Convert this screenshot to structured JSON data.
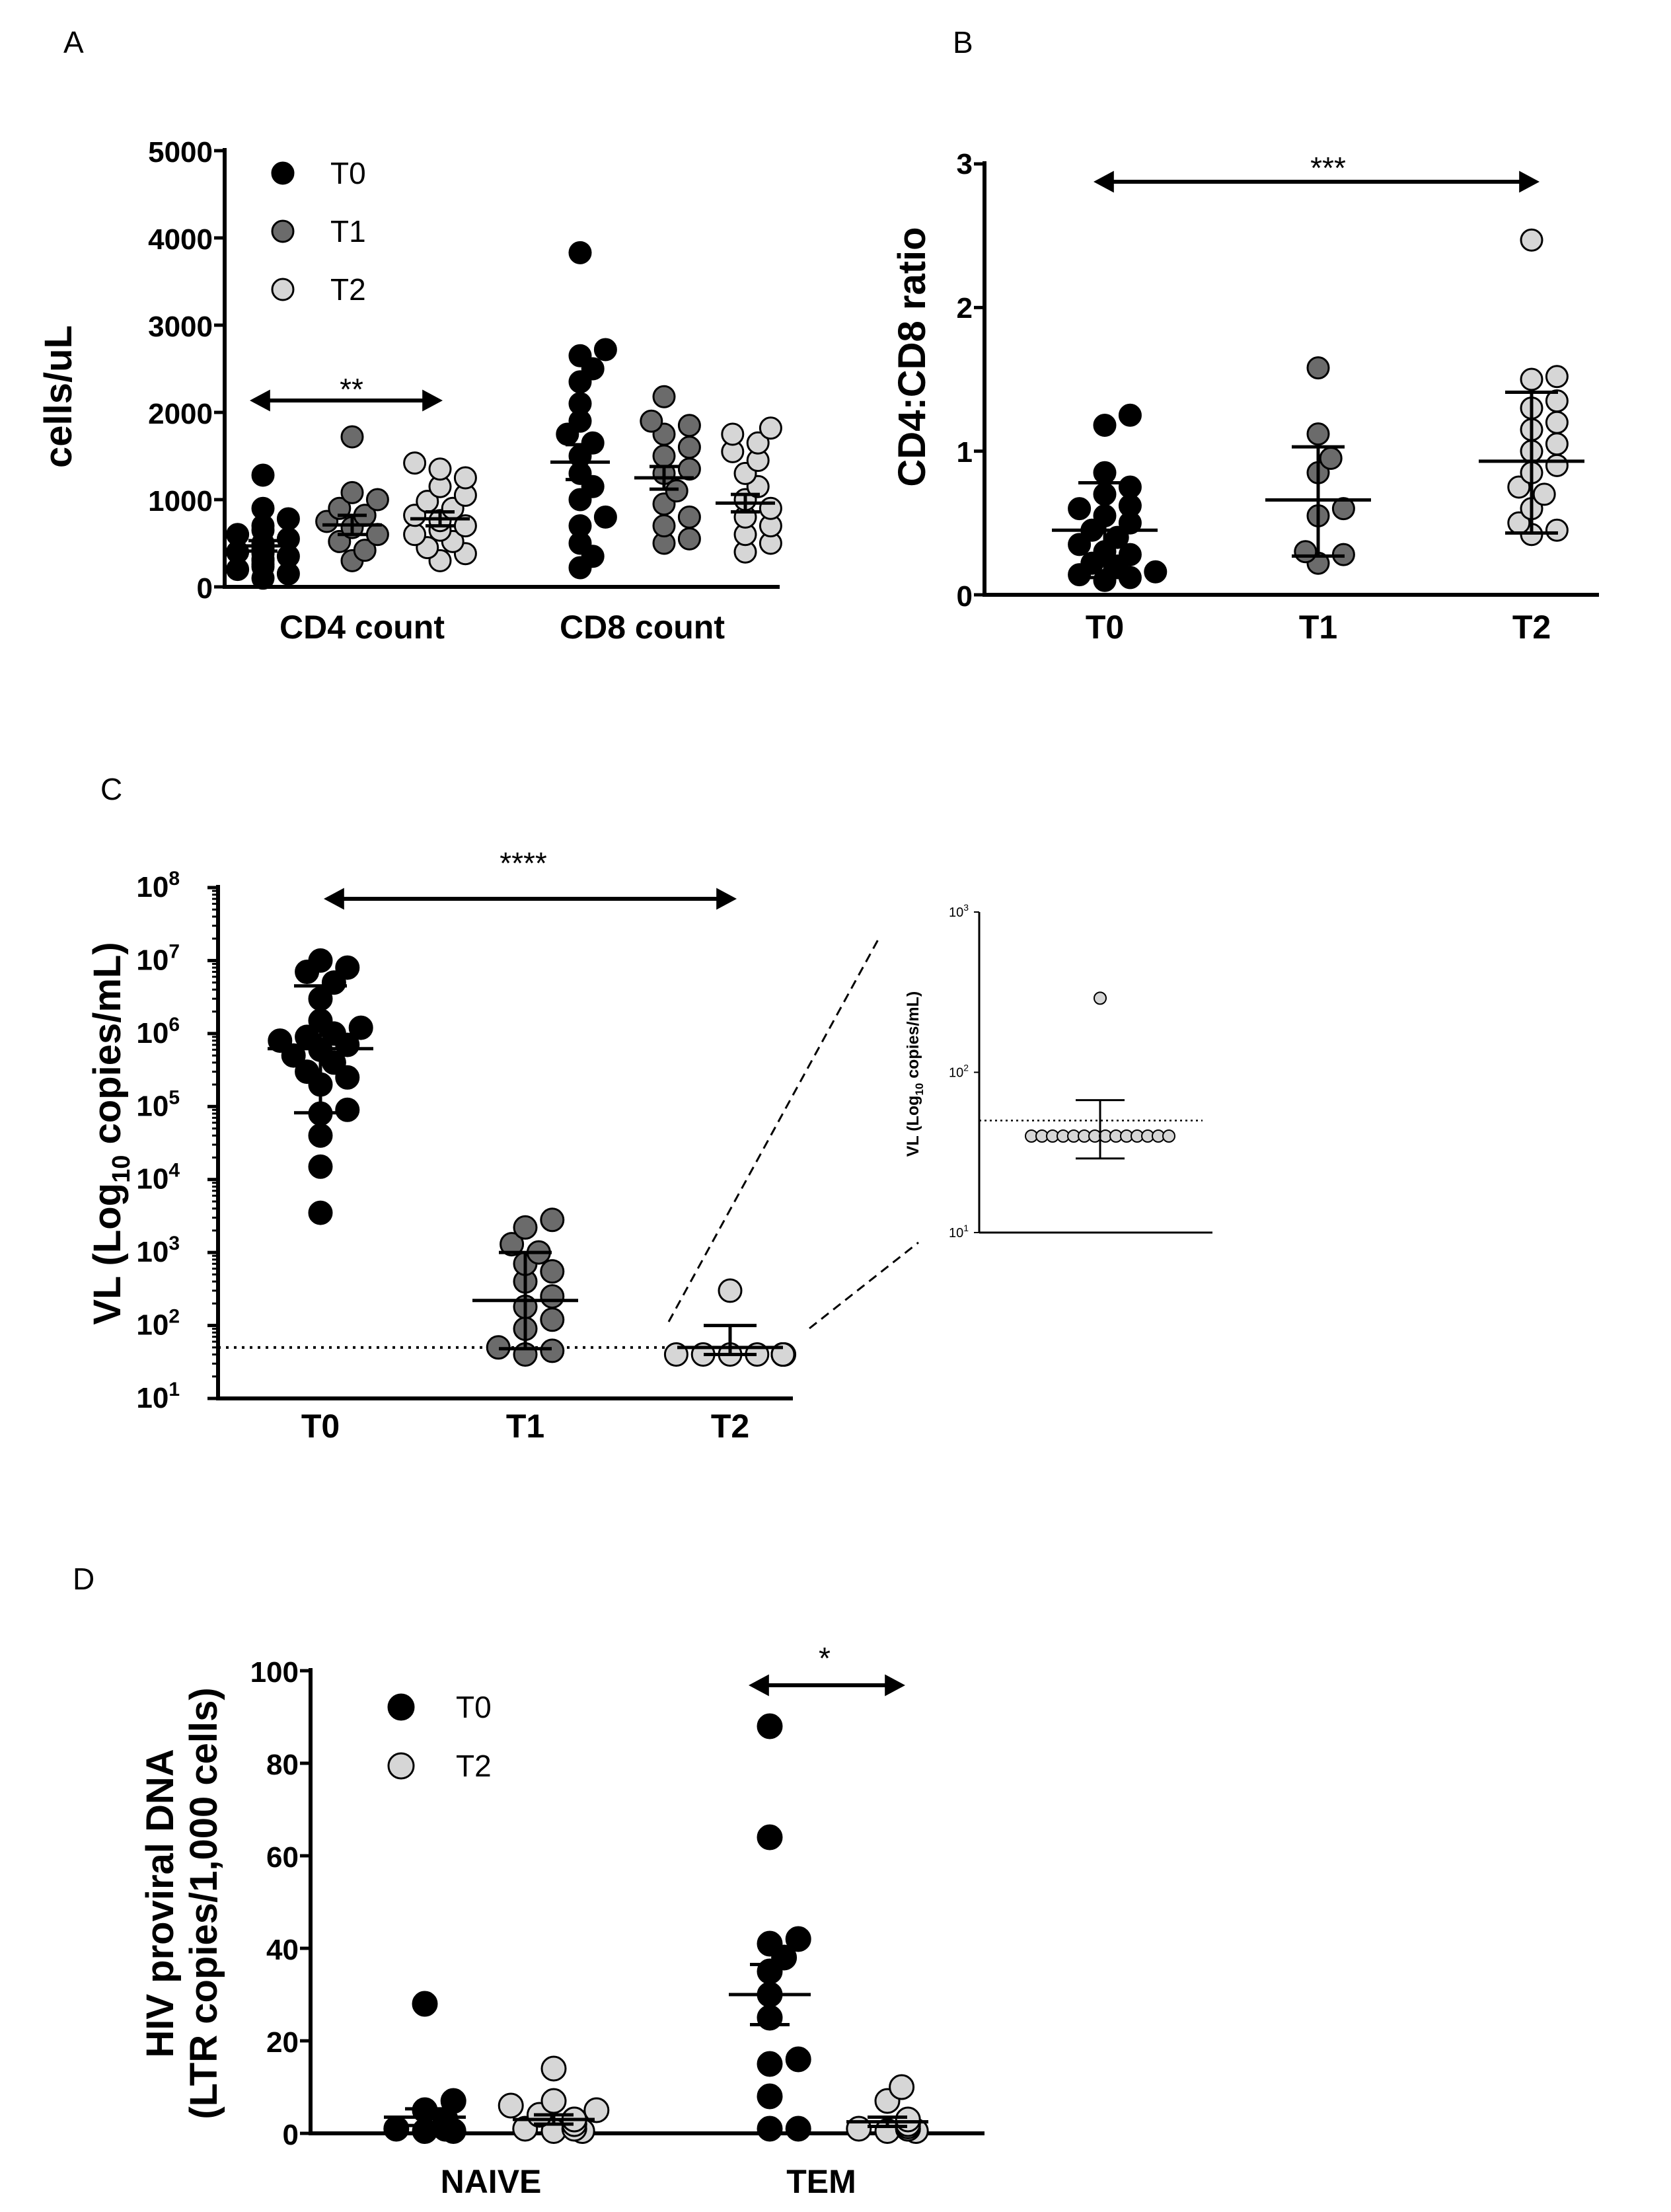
{
  "figure": {
    "panels": [
      "A",
      "B",
      "C",
      "D"
    ]
  },
  "colors": {
    "T0": "#000000",
    "T1": "#6b6b6b",
    "T2": "#d6d6d6",
    "outline": "#000000"
  },
  "chart_data": [
    {
      "id": "A",
      "type": "scatter",
      "panel_label": "A",
      "ylabel": "cells/uL",
      "ylim": [
        0,
        5000
      ],
      "yticks": [
        0,
        1000,
        2000,
        3000,
        4000,
        5000
      ],
      "categories": [
        "CD4 count",
        "CD8 count"
      ],
      "legend": [
        "T0",
        "T1",
        "T2"
      ],
      "legend_position": "top-left",
      "significance": {
        "label": "**",
        "from": "CD4 count T0",
        "to": "CD4 count T2"
      },
      "series": [
        {
          "name": "T0",
          "group": "CD4 count",
          "mean": 470,
          "sem": 60,
          "values": [
            100,
            150,
            200,
            230,
            260,
            300,
            320,
            350,
            380,
            400,
            430,
            460,
            500,
            550,
            600,
            650,
            700,
            780,
            900,
            1280
          ]
        },
        {
          "name": "T1",
          "group": "CD4 count",
          "mean": 710,
          "sem": 110,
          "values": [
            300,
            420,
            520,
            600,
            680,
            750,
            820,
            900,
            1000,
            1080,
            1720
          ]
        },
        {
          "name": "T2",
          "group": "CD4 count",
          "mean": 780,
          "sem": 80,
          "values": [
            300,
            380,
            450,
            520,
            600,
            650,
            700,
            760,
            820,
            900,
            980,
            1050,
            1150,
            1250,
            1350,
            1420
          ]
        },
        {
          "name": "T0",
          "group": "CD8 count",
          "mean": 1430,
          "sem": 200,
          "values": [
            220,
            350,
            500,
            700,
            800,
            1000,
            1150,
            1300,
            1500,
            1650,
            1750,
            1900,
            2100,
            2350,
            2500,
            2650,
            2720,
            3830
          ]
        },
        {
          "name": "T1",
          "group": "CD8 count",
          "mean": 1250,
          "sem": 130,
          "values": [
            500,
            550,
            700,
            800,
            950,
            1100,
            1300,
            1350,
            1500,
            1600,
            1750,
            1850,
            1900,
            2180
          ]
        },
        {
          "name": "T2",
          "group": "CD8 count",
          "mean": 960,
          "sem": 100,
          "values": [
            400,
            500,
            600,
            700,
            800,
            900,
            1000,
            1150,
            1300,
            1450,
            1550,
            1650,
            1750,
            1820
          ]
        }
      ]
    },
    {
      "id": "B",
      "type": "scatter",
      "panel_label": "B",
      "ylabel": "CD4:CD8 ratio",
      "ylim": [
        0,
        3
      ],
      "yticks": [
        0,
        1,
        2,
        3
      ],
      "categories": [
        "T0",
        "T1",
        "T2"
      ],
      "significance": {
        "label": "***",
        "from": "T0",
        "to": "T2"
      },
      "series": [
        {
          "name": "T0",
          "mean": 0.45,
          "sd_low": 0.12,
          "sd_high": 0.78,
          "values": [
            0.1,
            0.12,
            0.14,
            0.16,
            0.2,
            0.22,
            0.28,
            0.3,
            0.35,
            0.4,
            0.45,
            0.5,
            0.55,
            0.6,
            0.62,
            0.7,
            0.75,
            0.85,
            1.18,
            1.25
          ]
        },
        {
          "name": "T1",
          "mean": 0.66,
          "sd_low": 0.27,
          "sd_high": 1.03,
          "values": [
            0.22,
            0.28,
            0.3,
            0.55,
            0.6,
            0.85,
            0.95,
            1.12,
            1.58
          ]
        },
        {
          "name": "T2",
          "mean": 0.93,
          "sd_low": 0.43,
          "sd_high": 1.41,
          "values": [
            0.42,
            0.45,
            0.5,
            0.6,
            0.7,
            0.75,
            0.85,
            0.9,
            1.0,
            1.05,
            1.15,
            1.2,
            1.3,
            1.35,
            1.5,
            1.52,
            2.47
          ]
        }
      ]
    },
    {
      "id": "C",
      "type": "scatter",
      "panel_label": "C",
      "ylabel_main": "VL (Log",
      "ylabel_sub": "10",
      "ylabel_tail": " copies/mL)",
      "yscale": "log",
      "ylim": [
        10,
        100000000
      ],
      "ytick_base": "10",
      "ytick_exponents": [
        "1",
        "2",
        "3",
        "4",
        "5",
        "6",
        "7",
        "8"
      ],
      "categories": [
        "T0",
        "T1",
        "T2"
      ],
      "detection_limit": 50,
      "significance": {
        "label": "****",
        "from": "T0",
        "to": "T2"
      },
      "series": [
        {
          "name": "T0",
          "mean": 620000,
          "sd_low": 82000,
          "sd_high": 4500000,
          "values": [
            3500,
            15000,
            40000,
            80000,
            90000,
            200000,
            250000,
            300000,
            400000,
            500000,
            600000,
            700000,
            800000,
            900000,
            1000000,
            1200000,
            1500000,
            3000000,
            5000000,
            7000000,
            8000000,
            10000000
          ]
        },
        {
          "name": "T1",
          "mean": 220,
          "sd_low": 48,
          "sd_high": 1000,
          "values": [
            40,
            45,
            50,
            90,
            120,
            180,
            250,
            400,
            550,
            700,
            1000,
            1300,
            2200,
            2800
          ]
        },
        {
          "name": "T2",
          "mean": 50,
          "sd_low": 40,
          "sd_high": 100,
          "values": [
            40,
            40,
            40,
            40,
            40,
            40,
            40,
            40,
            40,
            40,
            40,
            40,
            40,
            40,
            300
          ]
        }
      ],
      "inset": {
        "ylabel_main": "VL (Log",
        "ylabel_sub": "10",
        "ylabel_tail": " copies/mL)",
        "ylim": [
          10,
          1000
        ],
        "ytick_base": "10",
        "ytick_exponents": [
          "1",
          "2",
          "3"
        ],
        "category": "T2",
        "mean": 50,
        "sd_low": 29,
        "sd_high": 67,
        "detection_limit": 50,
        "values": [
          40,
          40,
          40,
          40,
          40,
          40,
          40,
          40,
          40,
          40,
          40,
          40,
          40,
          40,
          290
        ]
      }
    },
    {
      "id": "D",
      "type": "scatter",
      "panel_label": "D",
      "ylabel_line1": "HIV proviral DNA",
      "ylabel_line2": "(LTR copies/1,000 cells)",
      "ylim": [
        0,
        100
      ],
      "yticks": [
        0,
        20,
        40,
        60,
        80,
        100
      ],
      "categories": [
        "NAIVE",
        "TEM"
      ],
      "legend": [
        "T0",
        "T2"
      ],
      "legend_position": "top-left",
      "significance": {
        "label": "*",
        "from": "TEM T0",
        "to": "TEM T2"
      },
      "series": [
        {
          "name": "T0",
          "group": "NAIVE",
          "mean": 3.5,
          "sem": 1.8,
          "values": [
            0.5,
            0.5,
            1,
            1,
            1,
            2,
            3,
            5,
            7,
            28
          ]
        },
        {
          "name": "T2",
          "group": "NAIVE",
          "mean": 3,
          "sem": 1,
          "values": [
            0.5,
            0.5,
            1,
            1,
            2,
            2,
            3,
            3,
            4,
            5,
            6,
            7,
            14
          ]
        },
        {
          "name": "T0",
          "group": "TEM",
          "mean": 30,
          "sem": 6.5,
          "values": [
            1,
            1,
            8,
            15,
            16,
            25,
            30,
            35,
            38,
            41,
            42,
            64,
            88
          ]
        },
        {
          "name": "T2",
          "group": "TEM",
          "mean": 2.5,
          "sem": 1,
          "values": [
            0.5,
            0.5,
            1,
            1,
            1,
            1.5,
            2,
            2,
            3,
            7,
            10
          ]
        }
      ]
    }
  ]
}
